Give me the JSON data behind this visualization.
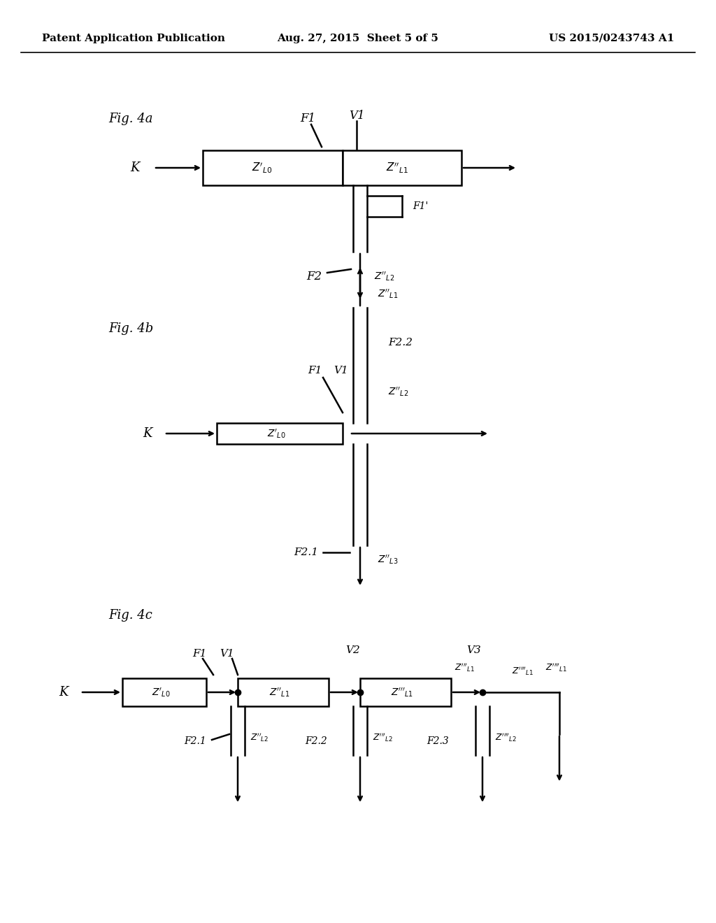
{
  "bg_color": "#ffffff",
  "header_left": "Patent Application Publication",
  "header_center": "Aug. 27, 2015  Sheet 5 of 5",
  "header_right": "US 2015/0243743 A1",
  "fig4a_label": "Fig. 4a",
  "fig4b_label": "Fig. 4b",
  "fig4c_label": "Fig. 4c"
}
